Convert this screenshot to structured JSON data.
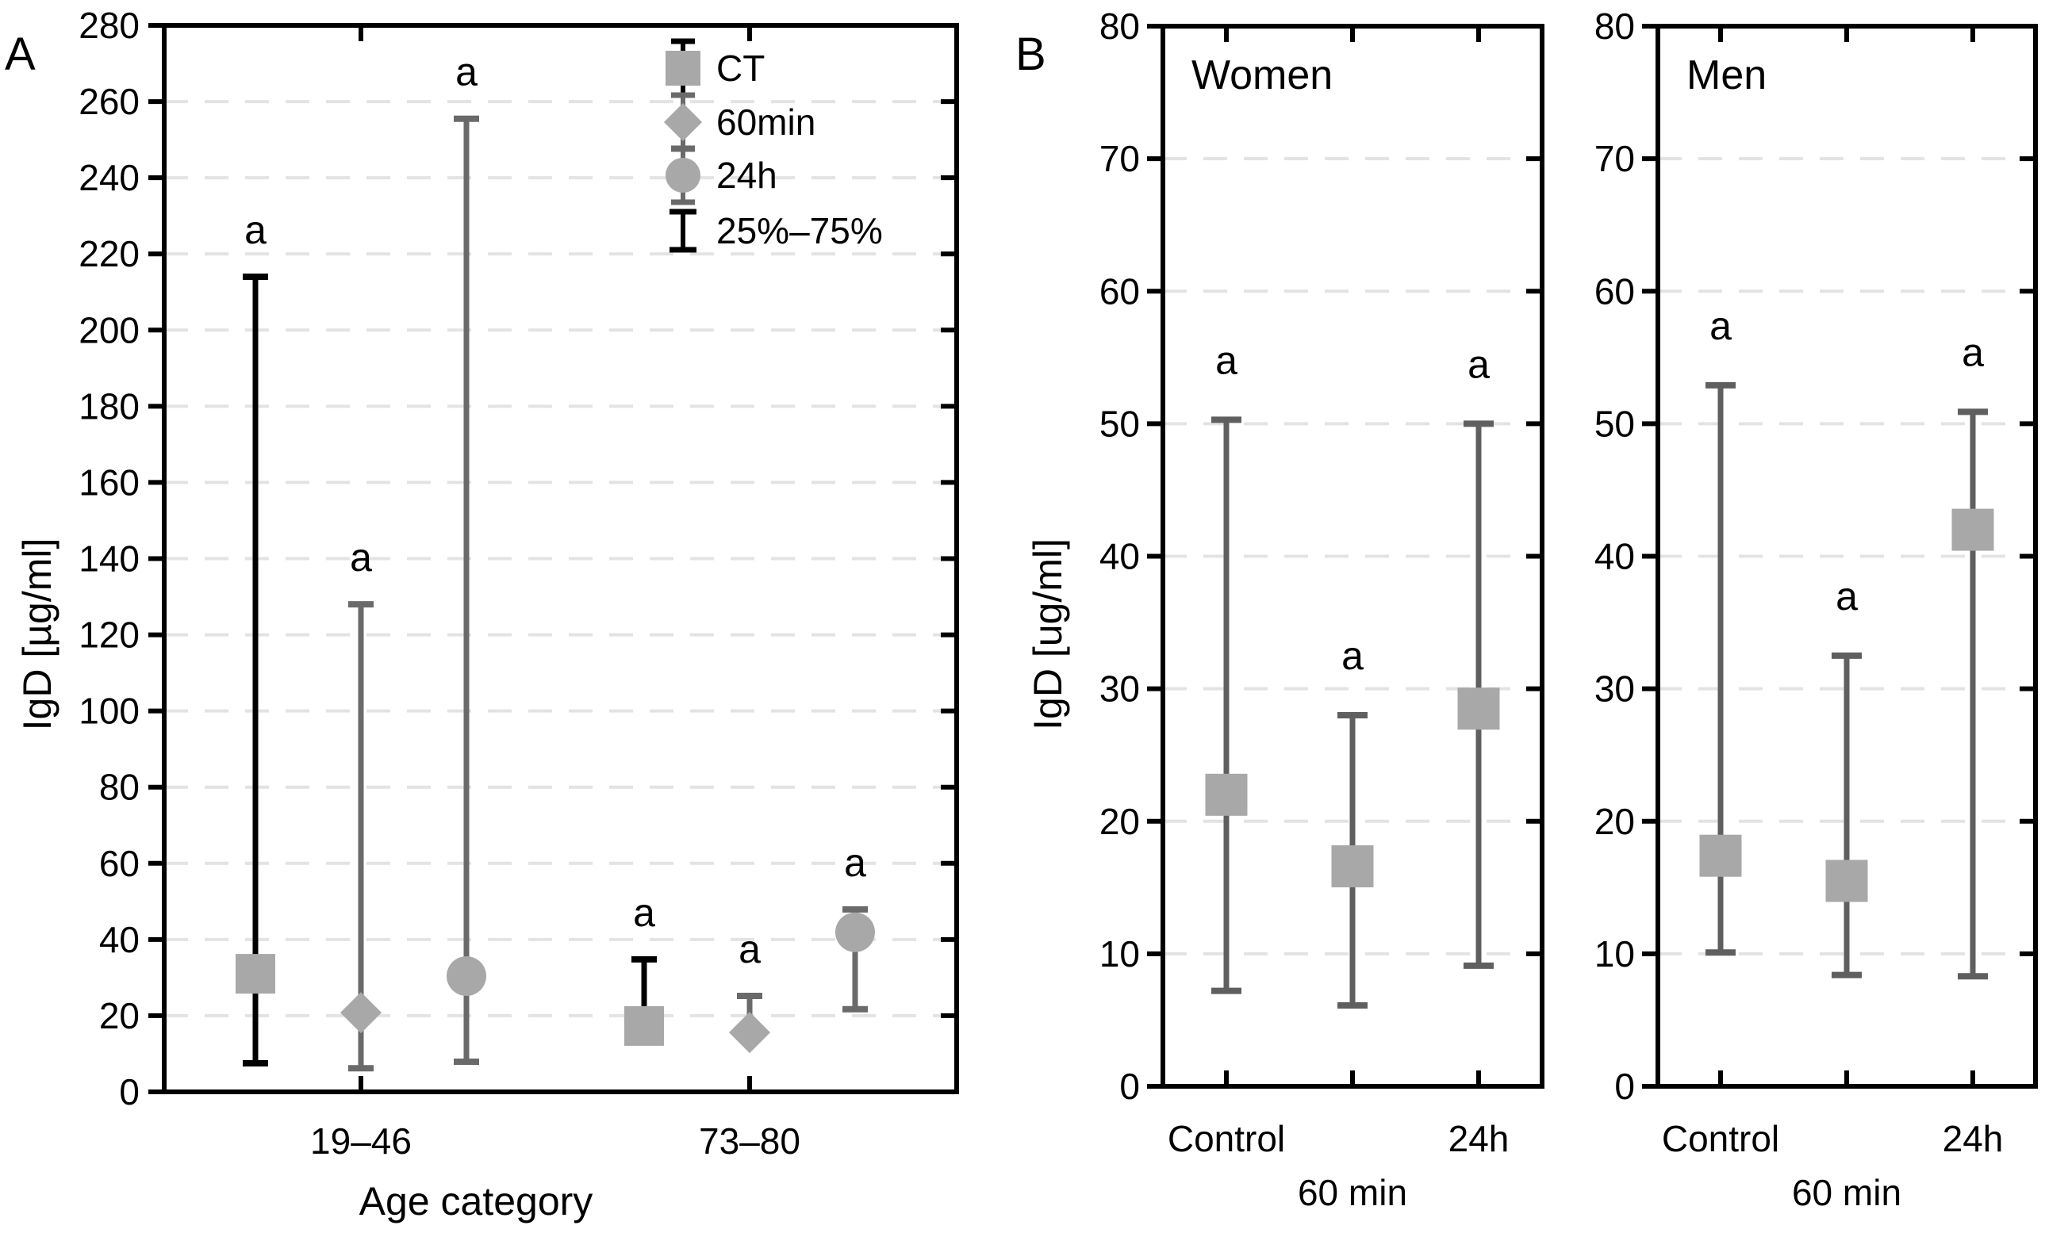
{
  "figure": {
    "panel_a_letter": "A",
    "panel_b_letter": "B",
    "colors": {
      "background": "#ffffff",
      "frame": "#000000",
      "grid": "#e3e3e3",
      "marker_fill": "#a8a8a8",
      "whisker_black": "#000000",
      "whisker_gray_a": "#6a6a6a",
      "whisker_gray_b": "#5f5f5f",
      "text": "#000000"
    },
    "legend": {
      "items": [
        {
          "label": "CT",
          "marker": "square"
        },
        {
          "label": "60min",
          "marker": "diamond"
        },
        {
          "label": "24h",
          "marker": "circle"
        },
        {
          "label": "25%–75%",
          "marker": "whisker"
        }
      ]
    }
  },
  "chart_data": [
    {
      "type": "median-whisker-boxplot",
      "panel": "A",
      "title": "",
      "xlabel": "Age category",
      "ylabel": "IgD [µg/ml]",
      "ylim": [
        0,
        280
      ],
      "ytick_step": 20,
      "grid": "dashed-horizontal",
      "legend_position": "upper-center-right",
      "categories": [
        "19–46",
        "73–80"
      ],
      "sig_letter": "a",
      "series": [
        {
          "name": "CT",
          "marker": "square",
          "whisker_color_key": "whisker_black",
          "points": [
            {
              "category": "19–46",
              "median": 31,
              "p25": 7.5,
              "p75": 214
            },
            {
              "category": "73–80",
              "median": 17.3,
              "p25": null,
              "p75": 34.8
            }
          ]
        },
        {
          "name": "60min",
          "marker": "diamond",
          "whisker_color_key": "whisker_gray_a",
          "points": [
            {
              "category": "19–46",
              "median": 20.8,
              "p25": 6.2,
              "p75": 128
            },
            {
              "category": "73–80",
              "median": 15.6,
              "p25": null,
              "p75": 25.2
            }
          ]
        },
        {
          "name": "24h",
          "marker": "circle",
          "whisker_color_key": "whisker_gray_a",
          "points": [
            {
              "category": "19–46",
              "median": 30.4,
              "p25": 7.9,
              "p75": 255.5
            },
            {
              "category": "73–80",
              "median": 41.9,
              "p25": 21.7,
              "p75": 47.9
            }
          ]
        }
      ]
    },
    {
      "type": "median-whisker-boxplot",
      "panel": "B",
      "title": "Women",
      "xlabel": "",
      "ylabel": "IgD [ug/ml]",
      "ylim": [
        0,
        80
      ],
      "ytick_step": 10,
      "grid": "dashed-horizontal",
      "categories": [
        "Control",
        "60 min",
        "24h"
      ],
      "sig_letter": "a",
      "series": [
        {
          "name": "CT",
          "marker": "square",
          "whisker_color_key": "whisker_gray_b",
          "points": [
            {
              "category": "Control",
              "median": 22,
              "p25": 7.2,
              "p75": 50.3
            },
            {
              "category": "60 min",
              "median": 16.6,
              "p25": 6.1,
              "p75": 28
            },
            {
              "category": "24h",
              "median": 28.5,
              "p25": 9.1,
              "p75": 50
            }
          ]
        }
      ]
    },
    {
      "type": "median-whisker-boxplot",
      "panel": "B",
      "title": "Men",
      "xlabel": "",
      "ylabel": "",
      "ylim": [
        0,
        80
      ],
      "ytick_step": 10,
      "grid": "dashed-horizontal",
      "categories": [
        "Control",
        "60 min",
        "24h"
      ],
      "sig_letter": "a",
      "series": [
        {
          "name": "CT",
          "marker": "square",
          "whisker_color_key": "whisker_gray_b",
          "points": [
            {
              "category": "Control",
              "median": 17.4,
              "p25": 10.1,
              "p75": 52.9
            },
            {
              "category": "60 min",
              "median": 15.5,
              "p25": 8.4,
              "p75": 32.5
            },
            {
              "category": "24h",
              "median": 42,
              "p25": 8.3,
              "p75": 50.9
            }
          ]
        }
      ]
    }
  ]
}
